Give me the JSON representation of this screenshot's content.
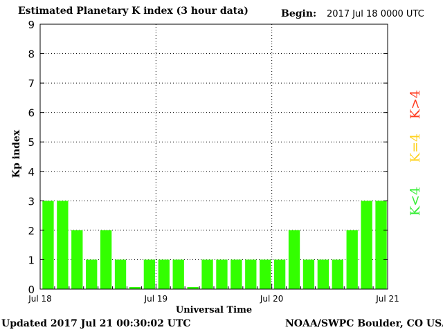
{
  "header": {
    "title": "Estimated Planetary K index (3 hour data)",
    "begin_label": "Begin:",
    "begin_value": "2017 Jul 18 0000 UTC"
  },
  "footer": {
    "updated": "Updated 2017 Jul 21 00:30:02 UTC",
    "source": "NOAA/SWPC Boulder, CO USA"
  },
  "legend": {
    "high": "K>4",
    "equal": "K=4",
    "low": "K<4",
    "colors": {
      "high": "#ff3b1f",
      "equal": "#ffd21f",
      "low": "#33ee33"
    }
  },
  "chart_data": {
    "type": "bar",
    "title": "Estimated Planetary K index (3 hour data)",
    "xlabel": "Universal Time",
    "ylabel": "Kp index",
    "ylim": [
      0,
      9
    ],
    "yticks": [
      "0",
      "1",
      "2",
      "3",
      "4",
      "5",
      "6",
      "7",
      "8",
      "9"
    ],
    "xticks": [
      "Jul 18",
      "Jul 19",
      "Jul 20",
      "Jul 21"
    ],
    "grid": "dotted",
    "bar_color": "#33ff00",
    "values": [
      3,
      3,
      2,
      1,
      2,
      1,
      0.07,
      1,
      1,
      1,
      0.07,
      1,
      1,
      1,
      1,
      1,
      1,
      2,
      1,
      1,
      1,
      2,
      3,
      3
    ]
  }
}
